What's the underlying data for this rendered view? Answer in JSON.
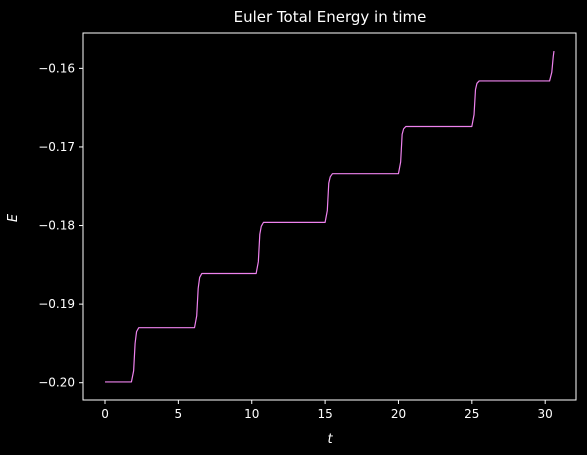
{
  "chart_data": {
    "type": "line",
    "title": "Euler Total Energy in time",
    "xlabel": "t",
    "ylabel": "E",
    "xlim": [
      -1.5,
      32.1
    ],
    "ylim": [
      -0.2022,
      -0.1555
    ],
    "x_ticks": [
      0,
      5,
      10,
      15,
      20,
      25,
      30
    ],
    "x_tick_labels": [
      "0",
      "5",
      "10",
      "15",
      "20",
      "25",
      "30"
    ],
    "y_ticks": [
      -0.2,
      -0.19,
      -0.18,
      -0.17,
      -0.16
    ],
    "y_tick_labels": [
      "−0.20",
      "−0.19",
      "−0.18",
      "−0.17",
      "−0.16"
    ],
    "grid": false,
    "colors": {
      "background": "#000000",
      "axes": "#ffffff",
      "line": "#ee82ee"
    },
    "series": [
      {
        "x": [
          0,
          1.8,
          1.95,
          2.05,
          2.15,
          2.3,
          6.1,
          6.25,
          6.35,
          6.45,
          6.6,
          10.3,
          10.45,
          10.55,
          10.65,
          10.8,
          15.0,
          15.15,
          15.25,
          15.35,
          15.5,
          20.0,
          20.15,
          20.25,
          20.35,
          20.5,
          25.0,
          25.15,
          25.25,
          25.35,
          25.5,
          30.3,
          30.45,
          30.55,
          30.6
        ],
        "y": [
          -0.1999,
          -0.1999,
          -0.1985,
          -0.195,
          -0.1935,
          -0.193,
          -0.193,
          -0.1915,
          -0.188,
          -0.1866,
          -0.1861,
          -0.1861,
          -0.1846,
          -0.1811,
          -0.1801,
          -0.1796,
          -0.1796,
          -0.1781,
          -0.1746,
          -0.1738,
          -0.1734,
          -0.1734,
          -0.1719,
          -0.1684,
          -0.1677,
          -0.1674,
          -0.1674,
          -0.1659,
          -0.1627,
          -0.1619,
          -0.1616,
          -0.1616,
          -0.1605,
          -0.1585,
          -0.1578
        ]
      }
    ]
  }
}
